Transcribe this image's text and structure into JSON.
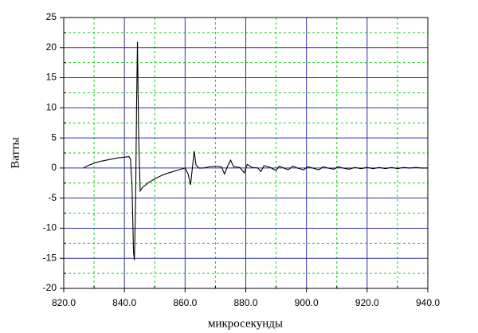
{
  "chart_data": {
    "type": "line",
    "xlabel": "микросекунды",
    "ylabel": "Ватты",
    "x": [
      826.5,
      828,
      830,
      832,
      834,
      836,
      838,
      840,
      841.5,
      842,
      842.5,
      843,
      843.3,
      843.7,
      844,
      844.3,
      844.7,
      845.2,
      846,
      848,
      850,
      852,
      854,
      856,
      858,
      860,
      861,
      861.8,
      862.4,
      863,
      863.6,
      864.5,
      866,
      868,
      870,
      872,
      873,
      874,
      875,
      876,
      878,
      879.5,
      880.5,
      882,
      884,
      885,
      886,
      888,
      890,
      891,
      892,
      894,
      895.5,
      897,
      899,
      900.5,
      902,
      904,
      905.5,
      907,
      909,
      910.5,
      912,
      914,
      916,
      918,
      920,
      922,
      924,
      926,
      928,
      930,
      932,
      934,
      936,
      938,
      940
    ],
    "series": [
      {
        "color": "#000000",
        "values": [
          0,
          0.4,
          0.8,
          1.1,
          1.3,
          1.5,
          1.7,
          1.8,
          1.9,
          1.5,
          -3,
          -14,
          -15.3,
          -5,
          10,
          21,
          5,
          -3.8,
          -3.2,
          -2.4,
          -1.8,
          -1.3,
          -0.9,
          -0.6,
          -0.3,
          0,
          -1,
          -2.8,
          0,
          2.8,
          0.5,
          0,
          0,
          0.2,
          0.3,
          0.2,
          -1,
          0.3,
          1.3,
          0.2,
          0.1,
          -0.8,
          0.6,
          0.1,
          0,
          -0.6,
          0.4,
          0.1,
          -0.4,
          0.3,
          0.1,
          -0.3,
          0.3,
          0,
          -0.3,
          0.2,
          0,
          -0.3,
          0.2,
          0,
          -0.2,
          0.2,
          0,
          -0.2,
          0.1,
          -0.1,
          0.1,
          -0.1,
          0.1,
          -0.1,
          0.1,
          -0.1,
          0.1,
          0,
          0.1,
          0,
          0
        ]
      }
    ],
    "xlim": [
      820,
      940
    ],
    "xticks": [
      {
        "value": 820,
        "label": "820.0"
      },
      {
        "value": 840,
        "label": "840.0"
      },
      {
        "value": 860,
        "label": "860.0"
      },
      {
        "value": 880,
        "label": "880.0"
      },
      {
        "value": 900,
        "label": "900.0"
      },
      {
        "value": 920,
        "label": "920.0"
      },
      {
        "value": 940,
        "label": "940.0"
      }
    ],
    "ylim": [
      -20,
      25
    ],
    "yticks": [
      -20,
      -15,
      -10,
      -5,
      0,
      5,
      10,
      15,
      20,
      25
    ],
    "grid": true,
    "major_grid_color": "#3030a0",
    "minor_grid_color": "#22cc22"
  }
}
